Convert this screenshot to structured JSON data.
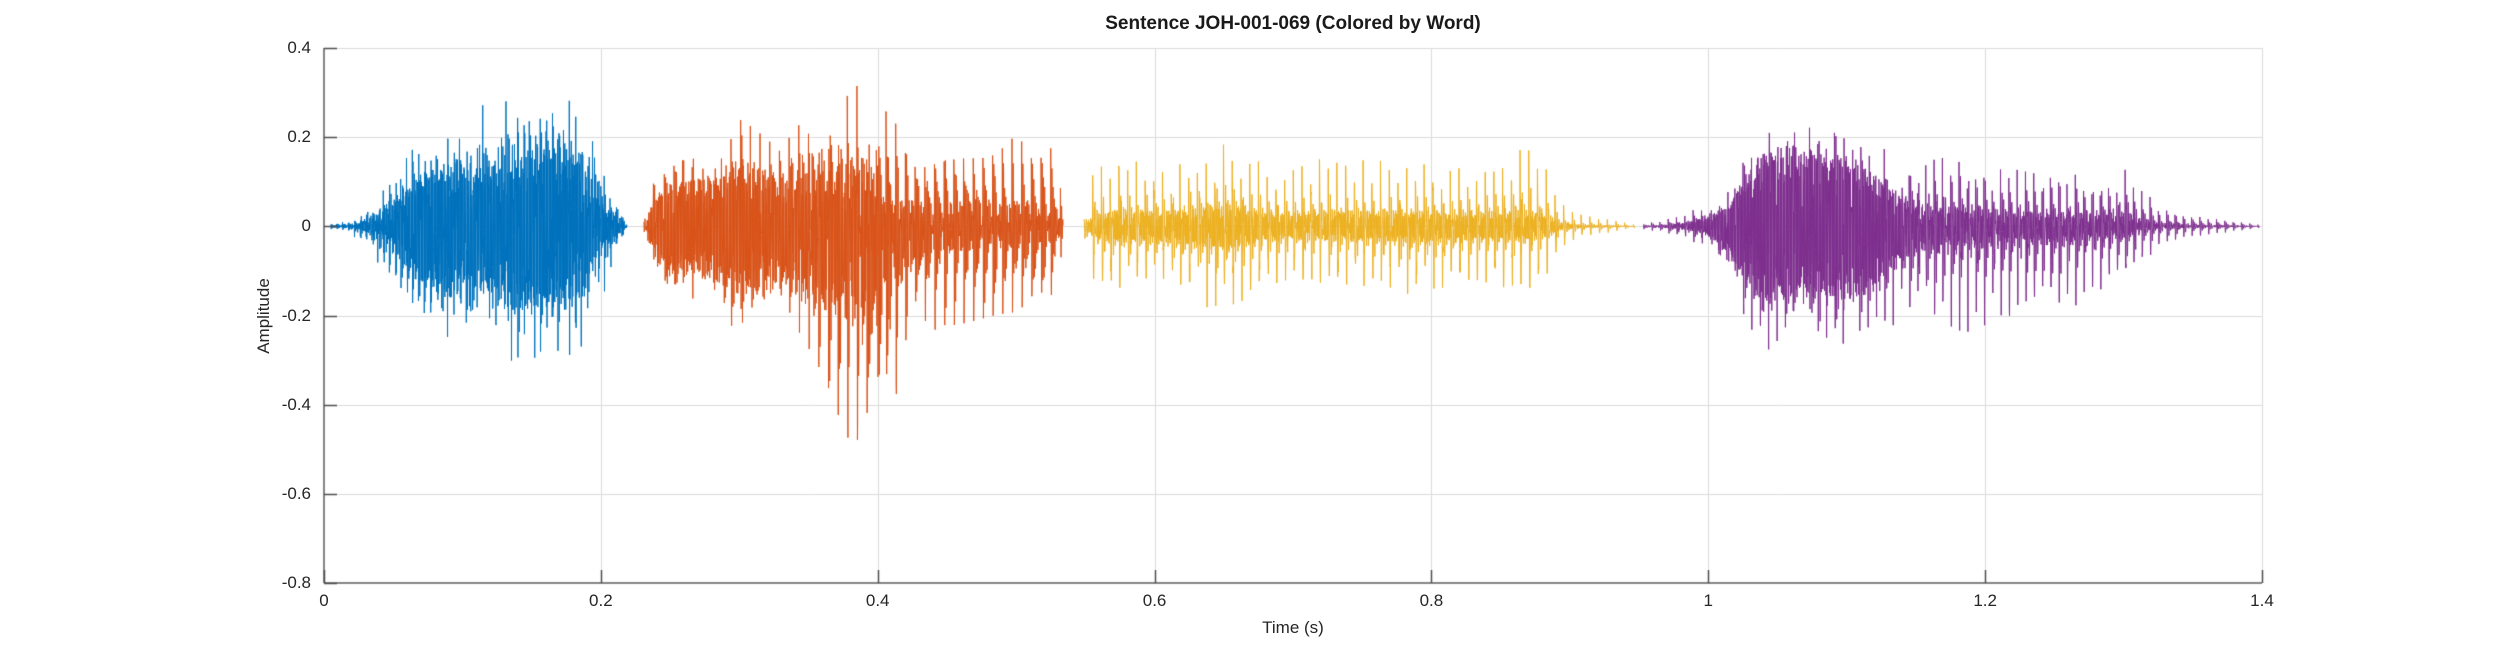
{
  "figure": {
    "title": "Sentence JOH-001-069 (Colored by Word)",
    "xlabel": "Time (s)",
    "ylabel": "Amplitude",
    "background_color": "#ffffff",
    "axis_line_color": "#848484",
    "tick_mark_color": "#4d4d4d",
    "text_color": "#262626",
    "grid_color": "#dcdcdc",
    "x_tick_labels": [
      "0",
      "0.2",
      "0.4",
      "0.6",
      "0.8",
      "1",
      "1.2",
      "1.4"
    ],
    "y_tick_labels": [
      "0.4",
      "0.2",
      "0",
      "-0.2",
      "-0.4",
      "-0.6",
      "-0.8"
    ]
  },
  "chart_data": {
    "type": "line",
    "subtype": "audio-waveform-colored-by-word",
    "title": "Sentence JOH-001-069 (Colored by Word)",
    "xlabel": "Time (s)",
    "ylabel": "Amplitude",
    "xlim": [
      0,
      1.4
    ],
    "ylim": [
      -0.8,
      0.4
    ],
    "x_tick_values": [
      0,
      0.2,
      0.4,
      0.6,
      0.8,
      1.0,
      1.2,
      1.4
    ],
    "y_tick_values": [
      0.4,
      0.2,
      0,
      -0.2,
      -0.4,
      -0.6,
      -0.8
    ],
    "grid": true,
    "legend": "none",
    "series": [
      {
        "name": "word-1",
        "color_name": "blue",
        "color": "#0072BD",
        "t_start": 0.005,
        "t_end": 0.219,
        "peak_amplitude": 0.38,
        "min_amplitude": -0.38,
        "synth": {
          "pitch_period_s": 0.0042,
          "ring_cycles": 9,
          "damping": 2.0,
          "phase_seed": 1.3
        },
        "envelope": {
          "columns": [
            "time_s",
            "pos_peak",
            "neg_peak",
            "fill"
          ],
          "points": [
            [
              0.005,
              0.006,
              0.006,
              0.2
            ],
            [
              0.018,
              0.012,
              0.012,
              0.2
            ],
            [
              0.03,
              0.05,
              0.05,
              0.3
            ],
            [
              0.05,
              0.12,
              0.13,
              0.4
            ],
            [
              0.07,
              0.2,
              0.22,
              0.5
            ],
            [
              0.09,
              0.265,
              0.295,
              0.55
            ],
            [
              0.105,
              0.315,
              0.335,
              0.55
            ],
            [
              0.122,
              0.36,
              0.345,
              0.55
            ],
            [
              0.135,
              0.32,
              0.36,
              0.55
            ],
            [
              0.15,
              0.295,
              0.32,
              0.55
            ],
            [
              0.163,
              0.32,
              0.295,
              0.5
            ],
            [
              0.178,
              0.295,
              0.305,
              0.5
            ],
            [
              0.19,
              0.28,
              0.255,
              0.45
            ],
            [
              0.2,
              0.175,
              0.175,
              0.4
            ],
            [
              0.208,
              0.1,
              0.1,
              0.35
            ],
            [
              0.214,
              0.05,
              0.05,
              0.3
            ],
            [
              0.219,
              0.01,
              0.01,
              0.2
            ]
          ]
        }
      },
      {
        "name": "word-2",
        "color_name": "orange",
        "color": "#D95319",
        "t_start": 0.231,
        "t_end": 0.534,
        "peak_amplitude": 0.37,
        "min_amplitude": -0.61,
        "synth": {
          "pitch_period_s": 0.007,
          "ring_cycles": 8,
          "damping": 2.6,
          "phase_seed": 2.8
        },
        "envelope": {
          "columns": [
            "time_s",
            "pos_peak",
            "neg_peak",
            "fill"
          ],
          "points": [
            [
              0.231,
              0.01,
              0.01,
              0.3
            ],
            [
              0.238,
              0.12,
              0.12,
              0.5
            ],
            [
              0.25,
              0.18,
              0.21,
              0.6
            ],
            [
              0.27,
              0.21,
              0.19,
              0.6
            ],
            [
              0.285,
              0.2,
              0.23,
              0.6
            ],
            [
              0.3,
              0.245,
              0.255,
              0.6
            ],
            [
              0.315,
              0.21,
              0.23,
              0.6
            ],
            [
              0.33,
              0.17,
              0.19,
              0.55
            ],
            [
              0.345,
              0.265,
              0.3,
              0.5
            ],
            [
              0.36,
              0.285,
              0.4,
              0.45
            ],
            [
              0.375,
              0.315,
              0.47,
              0.4
            ],
            [
              0.388,
              0.355,
              0.53,
              0.35
            ],
            [
              0.4,
              0.31,
              0.58,
              0.3
            ],
            [
              0.412,
              0.275,
              0.46,
              0.25
            ],
            [
              0.425,
              0.225,
              0.33,
              0.2
            ],
            [
              0.44,
              0.205,
              0.265,
              0.15
            ],
            [
              0.46,
              0.21,
              0.245,
              0.15
            ],
            [
              0.48,
              0.215,
              0.235,
              0.15
            ],
            [
              0.5,
              0.205,
              0.225,
              0.15
            ],
            [
              0.52,
              0.185,
              0.195,
              0.15
            ],
            [
              0.53,
              0.145,
              0.145,
              0.15
            ],
            [
              0.534,
              0.02,
              0.02,
              0.1
            ]
          ]
        }
      },
      {
        "name": "word-3",
        "color_name": "yellow",
        "color": "#EDB120",
        "t_start": 0.549,
        "t_end": 0.947,
        "peak_amplitude": 0.18,
        "min_amplitude": -0.21,
        "synth": {
          "pitch_period_s": 0.0063,
          "ring_cycles": 4,
          "damping": 4.2,
          "phase_seed": 4.1
        },
        "envelope": {
          "columns": [
            "time_s",
            "pos_peak",
            "neg_peak",
            "fill"
          ],
          "points": [
            [
              0.549,
              0.02,
              0.02,
              0.15
            ],
            [
              0.556,
              0.13,
              0.15,
              0.2
            ],
            [
              0.57,
              0.15,
              0.16,
              0.25
            ],
            [
              0.59,
              0.16,
              0.15,
              0.25
            ],
            [
              0.61,
              0.15,
              0.17,
              0.25
            ],
            [
              0.64,
              0.17,
              0.2,
              0.25
            ],
            [
              0.66,
              0.18,
              0.205,
              0.25
            ],
            [
              0.675,
              0.15,
              0.16,
              0.22
            ],
            [
              0.695,
              0.125,
              0.13,
              0.22
            ],
            [
              0.715,
              0.14,
              0.13,
              0.22
            ],
            [
              0.74,
              0.17,
              0.16,
              0.22
            ],
            [
              0.765,
              0.165,
              0.18,
              0.22
            ],
            [
              0.79,
              0.155,
              0.17,
              0.22
            ],
            [
              0.82,
              0.14,
              0.155,
              0.22
            ],
            [
              0.85,
              0.145,
              0.14,
              0.22
            ],
            [
              0.872,
              0.17,
              0.15,
              0.2
            ],
            [
              0.885,
              0.12,
              0.11,
              0.18
            ],
            [
              0.895,
              0.05,
              0.05,
              0.15
            ],
            [
              0.91,
              0.025,
              0.025,
              0.12
            ],
            [
              0.93,
              0.015,
              0.015,
              0.1
            ],
            [
              0.947,
              0.004,
              0.004,
              0.1
            ]
          ]
        }
      },
      {
        "name": "word-4",
        "color_name": "purple",
        "color": "#7E2F8E",
        "t_start": 0.953,
        "t_end": 1.398,
        "peak_amplitude": 0.35,
        "min_amplitude": -0.33,
        "synth": {
          "pitch_period_s": 0.006,
          "ring_cycles": 5,
          "damping": 3.6,
          "phase_seed": 5.9
        },
        "envelope": {
          "columns": [
            "time_s",
            "pos_peak",
            "neg_peak",
            "fill"
          ],
          "points": [
            [
              0.953,
              0.006,
              0.006,
              0.15
            ],
            [
              0.97,
              0.015,
              0.015,
              0.2
            ],
            [
              0.985,
              0.03,
              0.03,
              0.3
            ],
            [
              0.998,
              0.055,
              0.05,
              0.4
            ],
            [
              1.008,
              0.07,
              0.09,
              0.45
            ],
            [
              1.02,
              0.14,
              0.16,
              0.55
            ],
            [
              1.035,
              0.255,
              0.275,
              0.6
            ],
            [
              1.05,
              0.3,
              0.305,
              0.6
            ],
            [
              1.065,
              0.335,
              0.295,
              0.6
            ],
            [
              1.08,
              0.305,
              0.32,
              0.6
            ],
            [
              1.1,
              0.285,
              0.305,
              0.6
            ],
            [
              1.12,
              0.235,
              0.275,
              0.55
            ],
            [
              1.135,
              0.2,
              0.24,
              0.4
            ],
            [
              1.155,
              0.185,
              0.215,
              0.25
            ],
            [
              1.18,
              0.18,
              0.22,
              0.2
            ],
            [
              1.21,
              0.17,
              0.215,
              0.18
            ],
            [
              1.24,
              0.16,
              0.2,
              0.18
            ],
            [
              1.265,
              0.155,
              0.185,
              0.18
            ],
            [
              1.285,
              0.165,
              0.16,
              0.18
            ],
            [
              1.3,
              0.185,
              0.145,
              0.18
            ],
            [
              1.312,
              0.12,
              0.09,
              0.15
            ],
            [
              1.325,
              0.055,
              0.045,
              0.12
            ],
            [
              1.345,
              0.035,
              0.025,
              0.1
            ],
            [
              1.37,
              0.02,
              0.015,
              0.1
            ],
            [
              1.398,
              0.004,
              0.004,
              0.1
            ]
          ]
        }
      }
    ]
  }
}
